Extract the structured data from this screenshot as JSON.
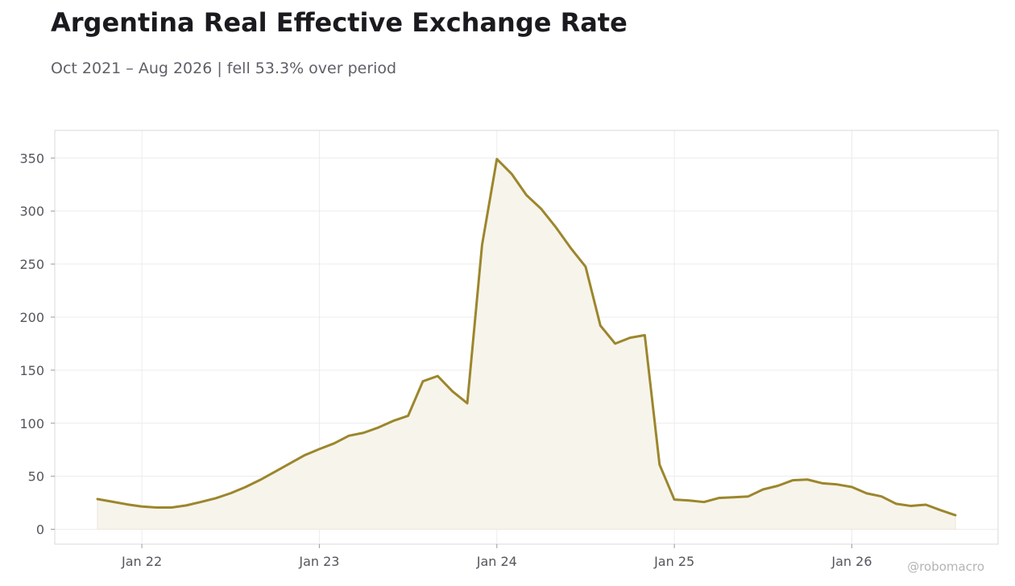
{
  "header": {
    "title": "Argentina Real Effective Exchange Rate",
    "subtitle": "Oct 2021 – Aug 2026 | fell 53.3% over period"
  },
  "watermark": "@robomacro",
  "colors": {
    "line": "#9c862c",
    "fill": "#f7f4ec",
    "grid": "#ececec",
    "frame": "#d9d9d9"
  },
  "chart_data": {
    "type": "area",
    "title": "Argentina Real Effective Exchange Rate",
    "subtitle": "Oct 2021 – Aug 2026 | fell 53.3% over period",
    "xlabel": "",
    "ylabel": "",
    "x_start": "2021-10",
    "x_end": "2026-08",
    "xticks": [
      {
        "date": "2022-01",
        "label": "Jan 22"
      },
      {
        "date": "2023-01",
        "label": "Jan 23"
      },
      {
        "date": "2024-01",
        "label": "Jan 24"
      },
      {
        "date": "2025-01",
        "label": "Jan 25"
      },
      {
        "date": "2026-01",
        "label": "Jan 26"
      }
    ],
    "yticks": [
      0,
      50,
      100,
      150,
      200,
      250,
      300,
      350
    ],
    "ylim": [
      -14,
      376
    ],
    "grid": true,
    "legend": "none",
    "series": [
      {
        "x": [
          "2021-10",
          "2021-11",
          "2021-12",
          "2022-01",
          "2022-02",
          "2022-03",
          "2022-04",
          "2022-05",
          "2022-06",
          "2022-07",
          "2022-08",
          "2022-09",
          "2022-10",
          "2022-11",
          "2022-12",
          "2023-01",
          "2023-02",
          "2023-03",
          "2023-04",
          "2023-05",
          "2023-06",
          "2023-07",
          "2023-08",
          "2023-09",
          "2023-10",
          "2023-11",
          "2023-12",
          "2024-01",
          "2024-02",
          "2024-03",
          "2024-04",
          "2024-05",
          "2024-06",
          "2024-07",
          "2024-08",
          "2024-09",
          "2024-10",
          "2024-11",
          "2024-12",
          "2025-01",
          "2025-02",
          "2025-03",
          "2025-04",
          "2025-05",
          "2025-06",
          "2025-07",
          "2025-08",
          "2025-09",
          "2025-10",
          "2025-11",
          "2025-12",
          "2026-01",
          "2026-02",
          "2026-03",
          "2026-04",
          "2026-05",
          "2026-06",
          "2026-07",
          "2026-08"
        ],
        "values": [
          28.5,
          26,
          23.5,
          21.5,
          20.5,
          20.5,
          22.5,
          25.8,
          29.3,
          34,
          39.8,
          46.6,
          54.2,
          62,
          69.8,
          75.6,
          81,
          88.2,
          91,
          96,
          102.2,
          107,
          139.5,
          144.5,
          130,
          118.8,
          268,
          349,
          335,
          315,
          302,
          284.5,
          265,
          247.5,
          192,
          175,
          180.5,
          183,
          61,
          28,
          27.2,
          25.7,
          29.5,
          30.2,
          31,
          37.6,
          41,
          46.2,
          46.9,
          43.4,
          42.3,
          39.9,
          33.9,
          31,
          24,
          22,
          23.2,
          18,
          13.3
        ]
      }
    ]
  }
}
